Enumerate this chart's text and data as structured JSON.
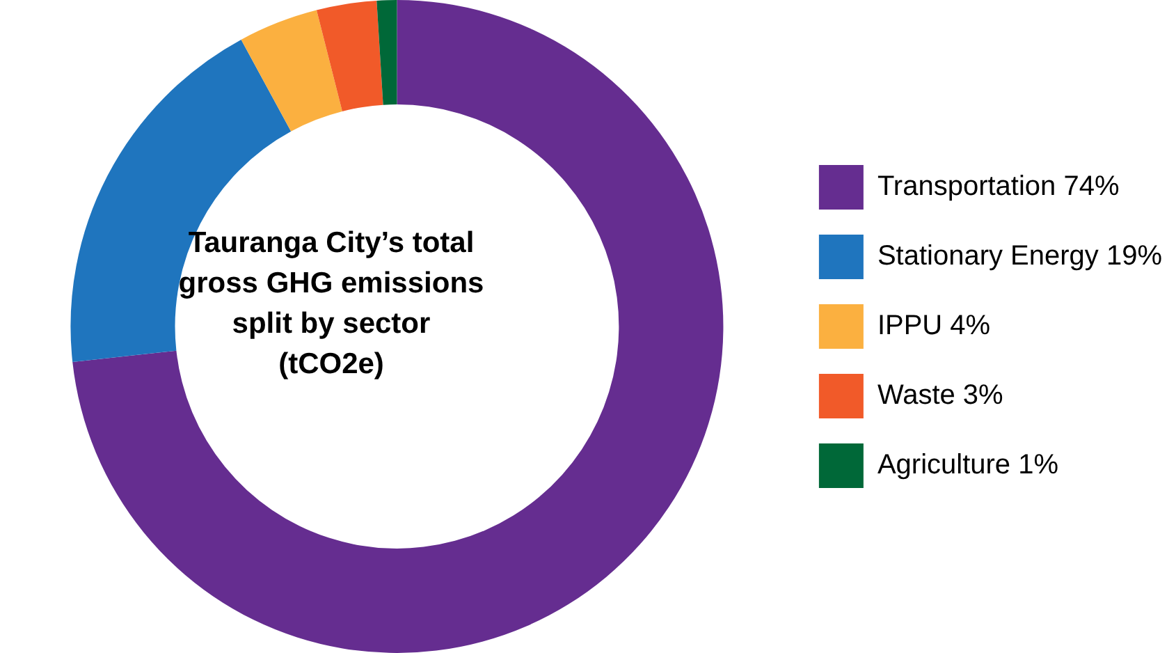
{
  "chart_data": {
    "type": "donut",
    "title": "Tauranga City’s total gross GHG emissions split by sector (tCO2e)",
    "categories": [
      "Transportation",
      "Stationary Energy",
      "IPPU",
      "Waste",
      "Agriculture"
    ],
    "values": [
      74,
      19,
      4,
      3,
      1
    ],
    "value_labels": [
      "74%",
      "19%",
      "4%",
      "3%",
      "1%"
    ],
    "colors": [
      "#652d90",
      "#1f75be",
      "#fbb040",
      "#f15a29",
      "#006838"
    ],
    "legend": "right"
  }
}
